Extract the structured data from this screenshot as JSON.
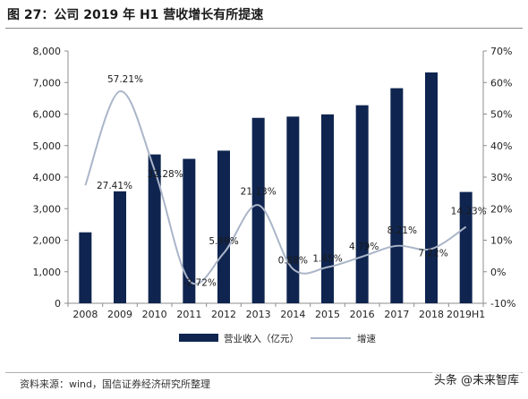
{
  "header": {
    "title": "图 27：公司 2019 年 H1 营收增长有所提速"
  },
  "footer": {
    "source": "资料来源：wind，国信证券经济研究所整理",
    "watermark": "头条 @未来智库"
  },
  "chart_data": {
    "type": "bar",
    "title": "图 27：公司 2019 年 H1 营收增长有所提速",
    "categories": [
      "2008",
      "2009",
      "2010",
      "2011",
      "2012",
      "2013",
      "2014",
      "2015",
      "2016",
      "2017",
      "2018",
      "2019H1"
    ],
    "series": [
      {
        "name": "营业收入（亿元）",
        "type": "bar",
        "axis": "left",
        "color": "#0f2550",
        "values": [
          2250,
          3550,
          4720,
          4580,
          4840,
          5880,
          5920,
          5990,
          6280,
          6820,
          7320,
          3530
        ]
      },
      {
        "name": "增速",
        "type": "line",
        "axis": "right",
        "color": "#aab5c8",
        "values": [
          27.41,
          57.21,
          32.28,
          -2.72,
          5.89,
          21.13,
          0.88,
          1.45,
          4.79,
          8.21,
          7.22,
          14.23
        ],
        "labels": [
          "",
          "57.21%",
          "32.28%",
          "-2.72%",
          "5.89%",
          "21.13%",
          "0.88%",
          "1.45%",
          "4.79%",
          "8.21%",
          "7.22%",
          "14.23%"
        ],
        "extra_label": "27.41%"
      }
    ],
    "left_axis": {
      "min": 0,
      "max": 8000,
      "ticks": [
        "0",
        "1,000",
        "2,000",
        "3,000",
        "4,000",
        "5,000",
        "6,000",
        "7,000",
        "8,000"
      ]
    },
    "right_axis": {
      "min": -10,
      "max": 70,
      "ticks": [
        "-10%",
        "0%",
        "10%",
        "20%",
        "30%",
        "40%",
        "50%",
        "60%",
        "70%"
      ]
    },
    "grid": false,
    "legend": {
      "placement": "bottom"
    }
  }
}
